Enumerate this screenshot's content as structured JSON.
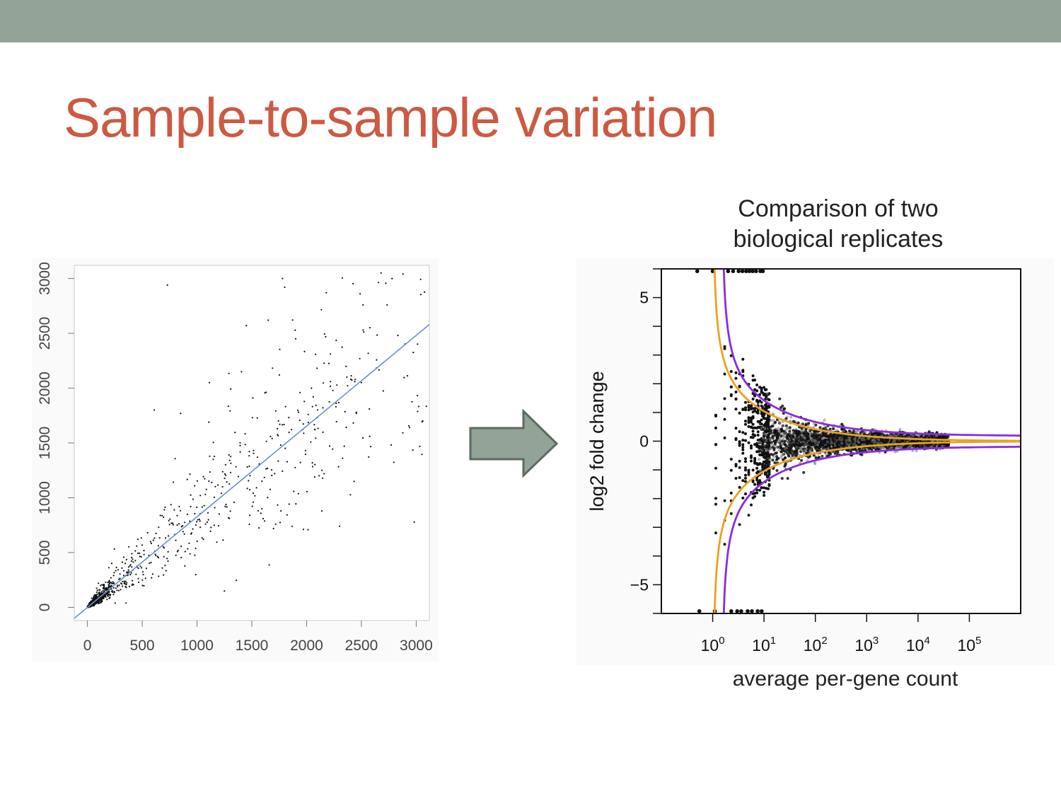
{
  "slide": {
    "title": "Sample-to-sample variation",
    "title_color": "#cc5a43",
    "top_bar_color": "#93a398",
    "arrow_fill": "#93a398",
    "arrow_stroke": "#5c6b60"
  },
  "chart_data": [
    {
      "type": "scatter",
      "title": "",
      "xlabel": "",
      "ylabel": "",
      "xlim": [
        -120,
        3120
      ],
      "ylim": [
        -120,
        3120
      ],
      "xticks": [
        0,
        500,
        1000,
        1500,
        2000,
        2500,
        3000
      ],
      "yticks": [
        0,
        500,
        1000,
        1500,
        2000,
        2500,
        3000
      ],
      "xtick_labels": [
        "0",
        "500",
        "1000",
        "1500",
        "2000",
        "2500",
        "3000"
      ],
      "ytick_labels": [
        "0",
        "500",
        "1000",
        "1500",
        "2000",
        "2500",
        "3000"
      ],
      "grid": false,
      "point_color": "#111111",
      "fit_line": {
        "x": [
          -120,
          3120
        ],
        "y": [
          -100,
          2580
        ],
        "color": "#6f8fc9"
      },
      "notable_points": {
        "x": [
          730,
          1780,
          1800,
          2180,
          2440,
          2680,
          2780,
          2880,
          1450,
          1650,
          1900,
          2060,
          2500,
          2940,
          3060,
          610,
          850,
          1250,
          2300
        ],
        "y": [
          2940,
          3000,
          2920,
          2870,
          2060,
          3050,
          3000,
          3040,
          2570,
          2620,
          2450,
          1920,
          2050,
          1640,
          1700,
          1800,
          1770,
          150,
          740
        ]
      }
    },
    {
      "type": "scatter",
      "title": "Comparison of two biological replicates",
      "title_lines": [
        "Comparison of two",
        "biological replicates"
      ],
      "xlabel": "average per-gene count",
      "ylabel": "log2 fold change",
      "x_scale": "log10",
      "xlim": [
        0.1,
        1000000
      ],
      "ylim": [
        -6,
        6
      ],
      "xticks": [
        1,
        10,
        100,
        1000,
        10000,
        100000
      ],
      "xtick_labels": [
        {
          "base": "10",
          "exp": "0"
        },
        {
          "base": "10",
          "exp": "1"
        },
        {
          "base": "10",
          "exp": "2"
        },
        {
          "base": "10",
          "exp": "3"
        },
        {
          "base": "10",
          "exp": "4"
        },
        {
          "base": "10",
          "exp": "5"
        }
      ],
      "yticks": [
        -5,
        0,
        5
      ],
      "ytick_labels": [
        "−5",
        "0",
        "5"
      ],
      "grid": false,
      "point_color": "#111111",
      "faint_point_color": "#777777",
      "curves": [
        {
          "color": "#e8a31f",
          "x0": 1.0,
          "y_offset": 0.0,
          "label": ""
        },
        {
          "color": "#8a2be2",
          "x0": 1.5,
          "y_offset": 0.18,
          "label": ""
        }
      ]
    }
  ]
}
